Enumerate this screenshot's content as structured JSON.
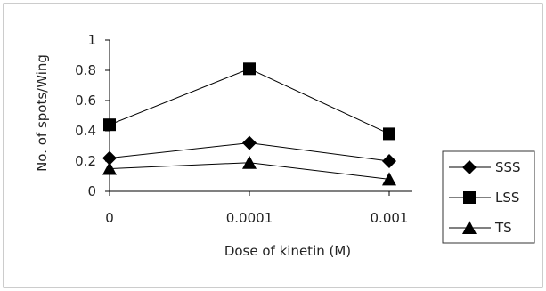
{
  "chart_data": {
    "type": "line",
    "categories": [
      "0",
      "0.0001",
      "0.001"
    ],
    "series": [
      {
        "name": "SSS",
        "values": [
          0.22,
          0.32,
          0.2
        ],
        "marker": "diamond"
      },
      {
        "name": "LSS",
        "values": [
          0.44,
          0.81,
          0.38
        ],
        "marker": "square"
      },
      {
        "name": "TS",
        "values": [
          0.15,
          0.19,
          0.08
        ],
        "marker": "triangle"
      }
    ],
    "title": "",
    "xlabel": "Dose of kinetin (M)",
    "ylabel": "No. of spots/Wing",
    "ylim": [
      0,
      1
    ],
    "yticks": [
      "0",
      "0.2",
      "0.4",
      "0.6",
      "0.8",
      "1"
    ],
    "grid": false,
    "legend": "right",
    "colors": {
      "line": "#000000",
      "marker": "#000000",
      "frame": "#999999"
    }
  }
}
